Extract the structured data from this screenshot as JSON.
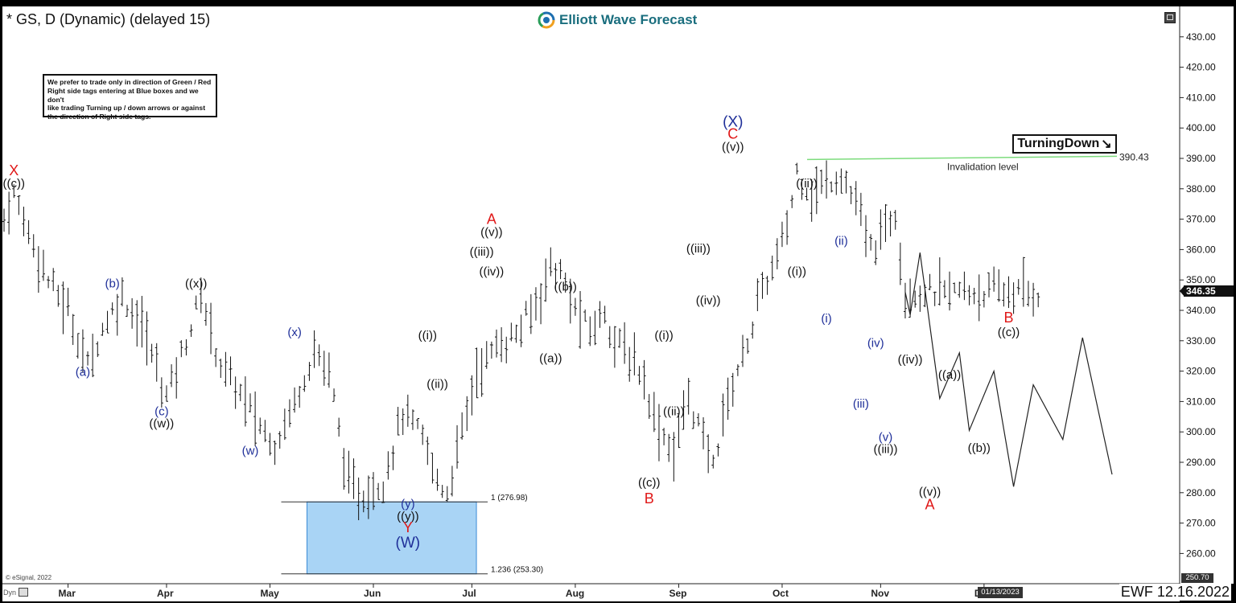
{
  "header": {
    "title": "* GS, D (Dynamic) (delayed 15)",
    "brand": "Elliott Wave Forecast",
    "brand_colors": {
      "primary": "#1a6e7e",
      "ring_a": "#f0a020",
      "ring_b": "#2a9d5a",
      "ring_c": "#1e6fb0"
    }
  },
  "disclaimer": [
    "We prefer to trade only in direction of Green / Red",
    "Right side tags entering at Blue boxes and we don't",
    "like trading Turning up / down arrows or against",
    "the direction of Right side tags."
  ],
  "status_tag": {
    "label": "TurningDown",
    "arrow": "↘"
  },
  "invalidation": {
    "price": 390.43,
    "price_label": "390.43",
    "label": "Invalidation level",
    "color": "#7ddc7d"
  },
  "current_price": {
    "value": 346.35,
    "label": "346.35"
  },
  "bottom_axis": {
    "edge_price": "250.70",
    "date_badge": "01/13/2023",
    "copyright": "© eSignal, 2022",
    "corner_tag": "Dyn"
  },
  "footer": {
    "stamp": "EWF 12.16.2022"
  },
  "chart_data": {
    "type": "ohlc-bar",
    "ylim": [
      248,
      440
    ],
    "y_ticks": [
      260,
      270,
      280,
      290,
      300,
      310,
      320,
      330,
      340,
      350,
      360,
      370,
      380,
      390,
      400,
      410,
      420,
      430
    ],
    "y_tick_labels": [
      "260.00",
      "270.00",
      "280.00",
      "290.00",
      "300.00",
      "310.00",
      "320.00",
      "330.00",
      "340.00",
      "350.00",
      "360.00",
      "370.00",
      "380.00",
      "390.00",
      "400.00",
      "410.00",
      "420.00",
      "430.00"
    ],
    "x_months": [
      "Mar",
      "Apr",
      "May",
      "Jun",
      "Jul",
      "Aug",
      "Sep",
      "Oct",
      "Nov",
      "Dec"
    ],
    "x_month_bar_index": [
      13,
      33,
      54,
      75,
      95,
      116,
      137,
      158,
      178,
      199
    ],
    "bar_count": 211,
    "price_path": [
      [
        0,
        370
      ],
      [
        2,
        378
      ],
      [
        5,
        366
      ],
      [
        9,
        350
      ],
      [
        13,
        340
      ],
      [
        17,
        322
      ],
      [
        20,
        334
      ],
      [
        24,
        345
      ],
      [
        28,
        335
      ],
      [
        33,
        312
      ],
      [
        37,
        330
      ],
      [
        40,
        345
      ],
      [
        44,
        322
      ],
      [
        47,
        315
      ],
      [
        52,
        302
      ],
      [
        55,
        296
      ],
      [
        59,
        310
      ],
      [
        63,
        327
      ],
      [
        66,
        320
      ],
      [
        70,
        282
      ],
      [
        73,
        279
      ],
      [
        77,
        284
      ],
      [
        81,
        306
      ],
      [
        85,
        298
      ],
      [
        88,
        284
      ],
      [
        90,
        280
      ],
      [
        93,
        300
      ],
      [
        96,
        320
      ],
      [
        100,
        328
      ],
      [
        104,
        332
      ],
      [
        108,
        342
      ],
      [
        111,
        355
      ],
      [
        113,
        352
      ],
      [
        116,
        340
      ],
      [
        119,
        333
      ],
      [
        122,
        340
      ],
      [
        124,
        330
      ],
      [
        127,
        325
      ],
      [
        130,
        318
      ],
      [
        132,
        305
      ],
      [
        136,
        293
      ],
      [
        139,
        312
      ],
      [
        142,
        297
      ],
      [
        144,
        289
      ],
      [
        146,
        305
      ],
      [
        148,
        316
      ],
      [
        151,
        330
      ],
      [
        154,
        347
      ],
      [
        156,
        353
      ],
      [
        159,
        367
      ],
      [
        161,
        386
      ],
      [
        164,
        378
      ],
      [
        167,
        382
      ],
      [
        170,
        385
      ],
      [
        173,
        375
      ],
      [
        176,
        360
      ],
      [
        178,
        364
      ],
      [
        181,
        373
      ],
      [
        183,
        346
      ]
    ],
    "projection": [
      {
        "i": 183,
        "v": 346
      },
      {
        "i": 184,
        "v": 338.5
      },
      {
        "i": 186,
        "v": 359
      },
      {
        "i": 190,
        "v": 311
      },
      {
        "i": 194,
        "v": 326
      },
      {
        "i": 196,
        "v": 300.5
      },
      {
        "i": 201,
        "v": 320
      },
      {
        "i": 205,
        "v": 282
      },
      {
        "i": 209,
        "v": 315.5
      },
      {
        "i": 215,
        "v": 297.5
      },
      {
        "i": 219,
        "v": 331
      },
      {
        "i": 225,
        "v": 286
      }
    ],
    "fib_box": {
      "i_from": 54,
      "i_to": 92,
      "top": 276.98,
      "bottom": 253.3,
      "top_label": "1 (276.98)",
      "bottom_label": "1.236 (253.30)",
      "color": "#a9d4f5"
    },
    "labels": [
      {
        "t": "X",
        "i": 2,
        "v": 384.5,
        "c": "#e01818",
        "s": 18
      },
      {
        "t": "((c))",
        "i": 2,
        "v": 380.5,
        "c": "#111",
        "s": 15
      },
      {
        "t": "(b)",
        "i": 22,
        "v": 347.5,
        "c": "#1f2f99",
        "s": 15
      },
      {
        "t": "(a)",
        "i": 16,
        "v": 318.5,
        "c": "#1f2f99",
        "s": 15
      },
      {
        "t": "(c)",
        "i": 32,
        "v": 305.5,
        "c": "#1f2f99",
        "s": 15
      },
      {
        "t": "((w))",
        "i": 32,
        "v": 301.5,
        "c": "#111",
        "s": 15
      },
      {
        "t": "((x))",
        "i": 39,
        "v": 347.5,
        "c": "#111",
        "s": 15
      },
      {
        "t": "(w)",
        "i": 50,
        "v": 292.5,
        "c": "#1f2f99",
        "s": 15
      },
      {
        "t": "(x)",
        "i": 59,
        "v": 331.5,
        "c": "#1f2f99",
        "s": 15
      },
      {
        "t": "(y)",
        "i": 82,
        "v": 275,
        "c": "#1f2f99",
        "s": 15
      },
      {
        "t": "((y))",
        "i": 82,
        "v": 271,
        "c": "#111",
        "s": 15
      },
      {
        "t": "Y",
        "i": 82,
        "v": 267,
        "c": "#e01818",
        "s": 18
      },
      {
        "t": "(W)",
        "i": 82,
        "v": 262,
        "c": "#1f2f99",
        "s": 19
      },
      {
        "t": "((i))",
        "i": 86,
        "v": 330.5,
        "c": "#111",
        "s": 15
      },
      {
        "t": "((ii))",
        "i": 88,
        "v": 314.5,
        "c": "#111",
        "s": 15
      },
      {
        "t": "((iii))",
        "i": 97,
        "v": 358,
        "c": "#111",
        "s": 15
      },
      {
        "t": "A",
        "i": 99,
        "v": 368.5,
        "c": "#e01818",
        "s": 18
      },
      {
        "t": "((v))",
        "i": 99,
        "v": 364.5,
        "c": "#111",
        "s": 15
      },
      {
        "t": "((iv))",
        "i": 99,
        "v": 351.5,
        "c": "#111",
        "s": 15
      },
      {
        "t": "((b))",
        "i": 114,
        "v": 346.5,
        "c": "#111",
        "s": 15
      },
      {
        "t": "((a))",
        "i": 111,
        "v": 323,
        "c": "#111",
        "s": 15
      },
      {
        "t": "((i))",
        "i": 134,
        "v": 330.5,
        "c": "#111",
        "s": 15
      },
      {
        "t": "((ii))",
        "i": 136,
        "v": 305.5,
        "c": "#111",
        "s": 15
      },
      {
        "t": "((c))",
        "i": 131,
        "v": 282,
        "c": "#111",
        "s": 15
      },
      {
        "t": "B",
        "i": 131,
        "v": 276.5,
        "c": "#e01818",
        "s": 18
      },
      {
        "t": "((iii))",
        "i": 141,
        "v": 359,
        "c": "#111",
        "s": 15
      },
      {
        "t": "((iv))",
        "i": 143,
        "v": 342,
        "c": "#111",
        "s": 15
      },
      {
        "t": "(X)",
        "i": 148,
        "v": 400.5,
        "c": "#1f2f99",
        "s": 19
      },
      {
        "t": "C",
        "i": 148,
        "v": 396.5,
        "c": "#e01818",
        "s": 18
      },
      {
        "t": "((v))",
        "i": 148,
        "v": 392.5,
        "c": "#111",
        "s": 15
      },
      {
        "t": "((ii))",
        "i": 163,
        "v": 380.5,
        "c": "#111",
        "s": 15
      },
      {
        "t": "((i))",
        "i": 161,
        "v": 351.5,
        "c": "#111",
        "s": 15
      },
      {
        "t": "(ii)",
        "i": 170,
        "v": 361.5,
        "c": "#1f2f99",
        "s": 15
      },
      {
        "t": "(i)",
        "i": 167,
        "v": 336,
        "c": "#1f2f99",
        "s": 15
      },
      {
        "t": "(iv)",
        "i": 177,
        "v": 328,
        "c": "#1f2f99",
        "s": 15
      },
      {
        "t": "(iii)",
        "i": 174,
        "v": 308,
        "c": "#1f2f99",
        "s": 15
      },
      {
        "t": "(v)",
        "i": 179,
        "v": 297,
        "c": "#1f2f99",
        "s": 15
      },
      {
        "t": "((iii))",
        "i": 179,
        "v": 293,
        "c": "#111",
        "s": 15
      },
      {
        "t": "((iv))",
        "i": 184,
        "v": 322.5,
        "c": "#111",
        "s": 15
      },
      {
        "t": "((a))",
        "i": 192,
        "v": 317.5,
        "c": "#111",
        "s": 15
      },
      {
        "t": "((b))",
        "i": 198,
        "v": 293.5,
        "c": "#111",
        "s": 15
      },
      {
        "t": "((v))",
        "i": 188,
        "v": 279,
        "c": "#111",
        "s": 15
      },
      {
        "t": "A",
        "i": 188,
        "v": 274.5,
        "c": "#e01818",
        "s": 18
      },
      {
        "t": "B",
        "i": 204,
        "v": 336,
        "c": "#e01818",
        "s": 18
      },
      {
        "t": "((c))",
        "i": 204,
        "v": 331.5,
        "c": "#111",
        "s": 15
      }
    ]
  }
}
